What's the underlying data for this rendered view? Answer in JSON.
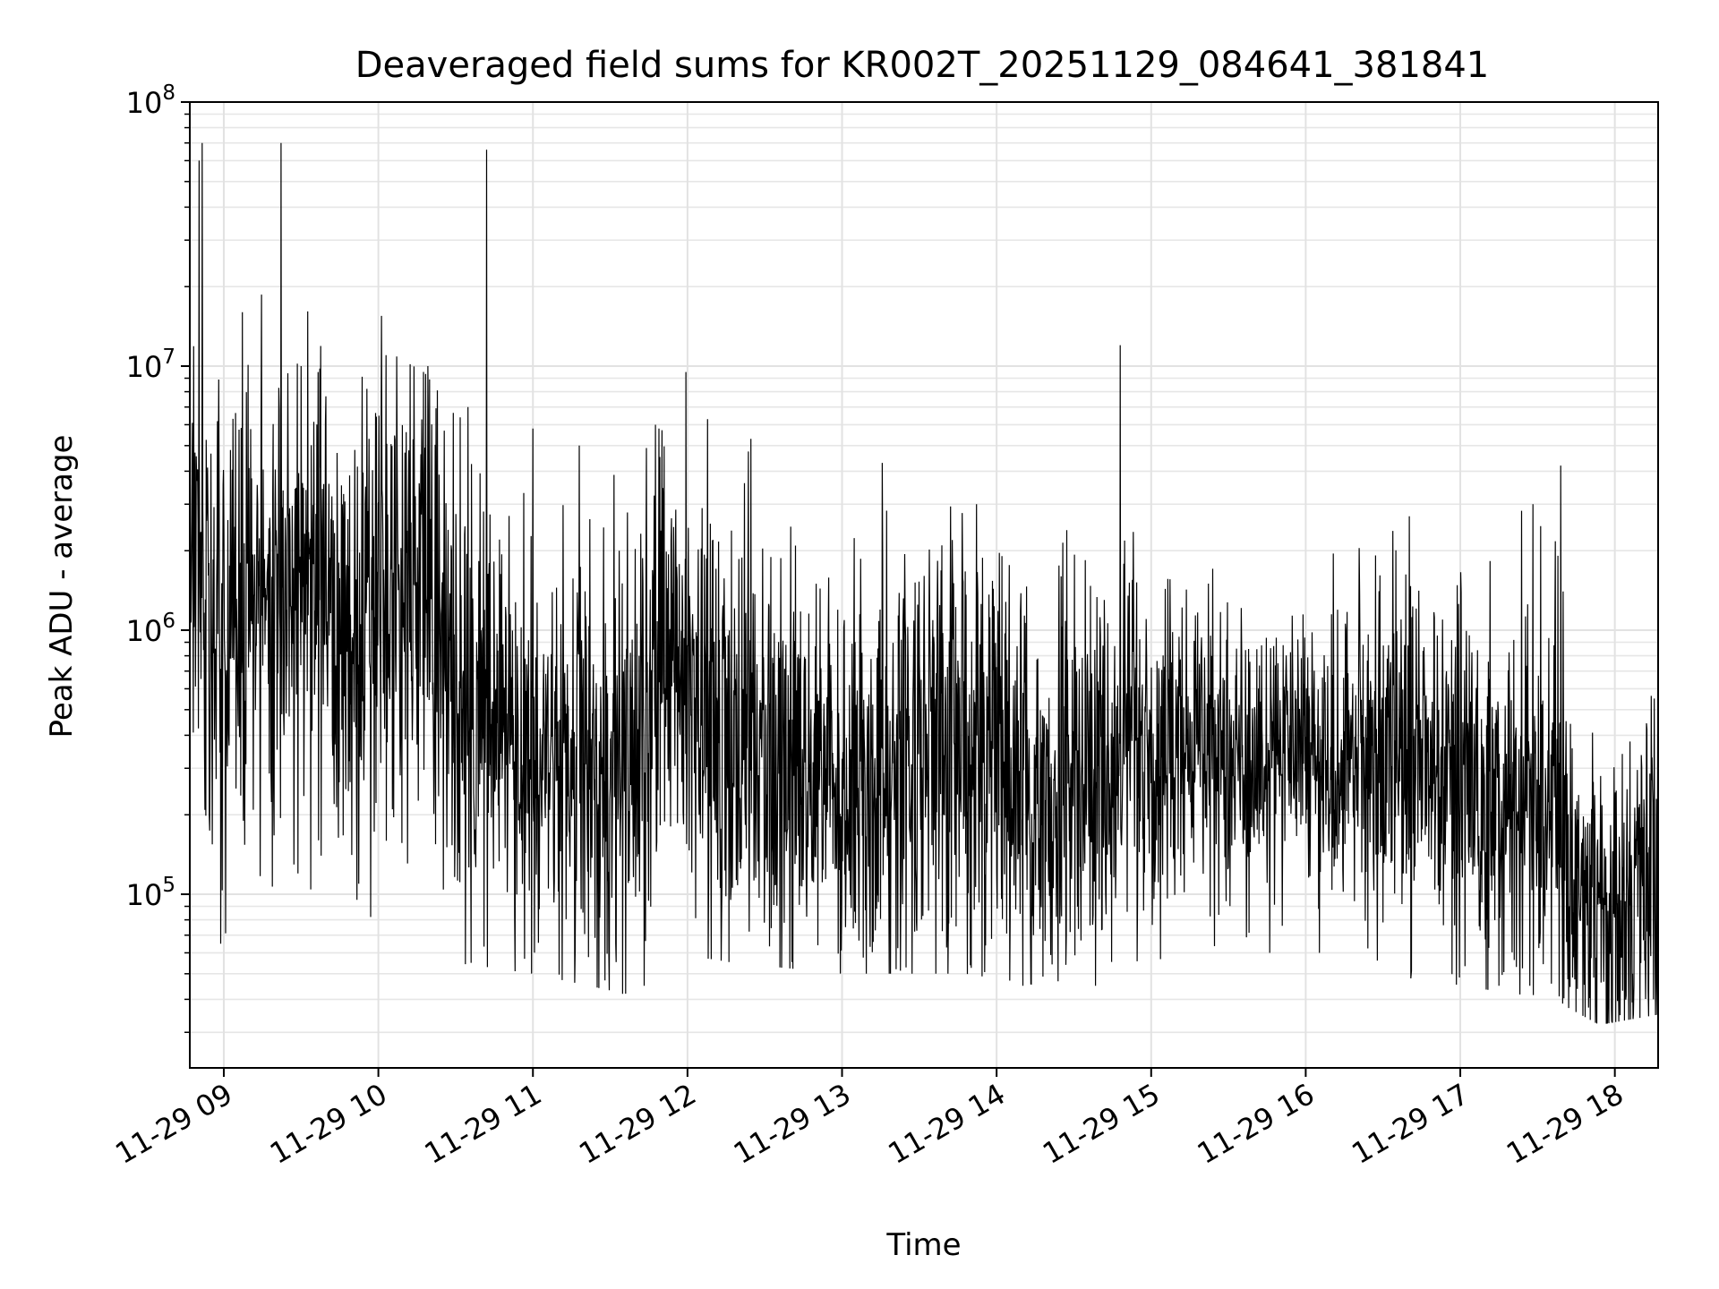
{
  "chart_data": {
    "type": "line",
    "title": "Deaveraged field sums for KR002T_20251129_084641_381841",
    "xlabel": "Time",
    "ylabel": "Peak ADU - average",
    "yscale": "log",
    "ylim": [
      22000,
      100000000
    ],
    "xlim_hours": [
      8.78,
      18.28
    ],
    "grid": true,
    "line_color": "#000000",
    "x_ticks": [
      {
        "hour": 9,
        "label": "11-29 09"
      },
      {
        "hour": 10,
        "label": "11-29 10"
      },
      {
        "hour": 11,
        "label": "11-29 11"
      },
      {
        "hour": 12,
        "label": "11-29 12"
      },
      {
        "hour": 13,
        "label": "11-29 13"
      },
      {
        "hour": 14,
        "label": "11-29 14"
      },
      {
        "hour": 15,
        "label": "11-29 15"
      },
      {
        "hour": 16,
        "label": "11-29 16"
      },
      {
        "hour": 17,
        "label": "11-29 17"
      },
      {
        "hour": 18,
        "label": "11-29 18"
      }
    ],
    "y_ticks": [
      {
        "value": 100000,
        "base": "10",
        "exp": "5"
      },
      {
        "value": 1000000,
        "base": "10",
        "exp": "6"
      },
      {
        "value": 10000000,
        "base": "10",
        "exp": "7"
      },
      {
        "value": 100000000,
        "base": "10",
        "exp": "8"
      }
    ],
    "series": [
      {
        "name": "deaveraged field sum",
        "trend": [
          {
            "hour": 8.78,
            "level": 1500000,
            "spread": 0.55,
            "min": 500000,
            "max": 70000000
          },
          {
            "hour": 9.0,
            "level": 1000000,
            "spread": 0.5,
            "min": 70000,
            "max": 16000000
          },
          {
            "hour": 9.4,
            "level": 1500000,
            "spread": 0.45,
            "min": 120000,
            "max": 70000000
          },
          {
            "hour": 9.8,
            "level": 1200000,
            "spread": 0.45,
            "min": 85000,
            "max": 15000000
          },
          {
            "hour": 10.3,
            "level": 1500000,
            "spread": 0.45,
            "min": 140000,
            "max": 10000000
          },
          {
            "hour": 10.5,
            "level": 500000,
            "spread": 0.45,
            "min": 55000,
            "max": 7000000
          },
          {
            "hour": 11.0,
            "level": 350000,
            "spread": 0.4,
            "min": 50000,
            "max": 5800000
          },
          {
            "hour": 11.6,
            "level": 300000,
            "spread": 0.4,
            "min": 42000,
            "max": 4000000
          },
          {
            "hour": 11.9,
            "level": 800000,
            "spread": 0.45,
            "min": 60000,
            "max": 9500000
          },
          {
            "hour": 12.3,
            "level": 350000,
            "spread": 0.4,
            "min": 55000,
            "max": 5300000
          },
          {
            "hour": 13.0,
            "level": 250000,
            "spread": 0.4,
            "min": 50000,
            "max": 4300000
          },
          {
            "hour": 13.8,
            "level": 400000,
            "spread": 0.4,
            "min": 50000,
            "max": 3000000
          },
          {
            "hour": 14.3,
            "level": 180000,
            "spread": 0.4,
            "min": 45000,
            "max": 1300000
          },
          {
            "hour": 14.8,
            "level": 350000,
            "spread": 0.35,
            "min": 55000,
            "max": 12000000
          },
          {
            "hour": 15.5,
            "level": 350000,
            "spread": 0.3,
            "min": 60000,
            "max": 1300000
          },
          {
            "hour": 16.3,
            "level": 380000,
            "spread": 0.3,
            "min": 60000,
            "max": 2700000
          },
          {
            "hour": 17.0,
            "level": 300000,
            "spread": 0.35,
            "min": 45000,
            "max": 2700000
          },
          {
            "hour": 17.6,
            "level": 200000,
            "spread": 0.35,
            "min": 40000,
            "max": 4200000
          },
          {
            "hour": 17.9,
            "level": 90000,
            "spread": 0.35,
            "min": 32000,
            "max": 900000
          },
          {
            "hour": 18.28,
            "level": 120000,
            "spread": 0.35,
            "min": 35000,
            "max": 560000
          }
        ],
        "spikes": [
          {
            "hour": 8.84,
            "value": 60000000
          },
          {
            "hour": 8.86,
            "value": 70000000
          },
          {
            "hour": 9.12,
            "value": 16000000
          },
          {
            "hour": 9.37,
            "value": 70000000
          },
          {
            "hour": 9.5,
            "value": 10000000
          },
          {
            "hour": 9.61,
            "value": 9500000
          },
          {
            "hour": 10.02,
            "value": 15500000
          },
          {
            "hour": 10.05,
            "value": 11000000
          },
          {
            "hour": 10.32,
            "value": 10000000
          },
          {
            "hour": 10.58,
            "value": 7000000
          },
          {
            "hour": 10.7,
            "value": 66000000
          },
          {
            "hour": 11.0,
            "value": 5800000
          },
          {
            "hour": 11.3,
            "value": 5000000
          },
          {
            "hour": 11.99,
            "value": 9500000
          },
          {
            "hour": 12.13,
            "value": 6300000
          },
          {
            "hour": 12.41,
            "value": 5300000
          },
          {
            "hour": 13.26,
            "value": 4300000
          },
          {
            "hour": 13.87,
            "value": 3000000
          },
          {
            "hour": 14.8,
            "value": 12000000
          },
          {
            "hour": 16.67,
            "value": 2700000
          },
          {
            "hour": 17.25,
            "value": 2700000
          },
          {
            "hour": 17.47,
            "value": 3000000
          },
          {
            "hour": 17.65,
            "value": 4200000
          }
        ],
        "dips": [
          {
            "hour": 8.98,
            "value": 65000
          },
          {
            "hour": 9.48,
            "value": 120000
          },
          {
            "hour": 9.63,
            "value": 140000
          },
          {
            "hour": 9.95,
            "value": 82000
          },
          {
            "hour": 10.6,
            "value": 55000
          },
          {
            "hour": 11.58,
            "value": 42000
          },
          {
            "hour": 11.72,
            "value": 45000
          },
          {
            "hour": 13.35,
            "value": 52000
          },
          {
            "hour": 14.17,
            "value": 45000
          },
          {
            "hour": 14.64,
            "value": 45000
          },
          {
            "hour": 16.68,
            "value": 48000
          },
          {
            "hour": 17.25,
            "value": 45000
          },
          {
            "hour": 17.98,
            "value": 33000
          },
          {
            "hour": 18.12,
            "value": 35000
          },
          {
            "hour": 18.25,
            "value": 40000
          }
        ],
        "sample_count": 3400
      }
    ]
  }
}
